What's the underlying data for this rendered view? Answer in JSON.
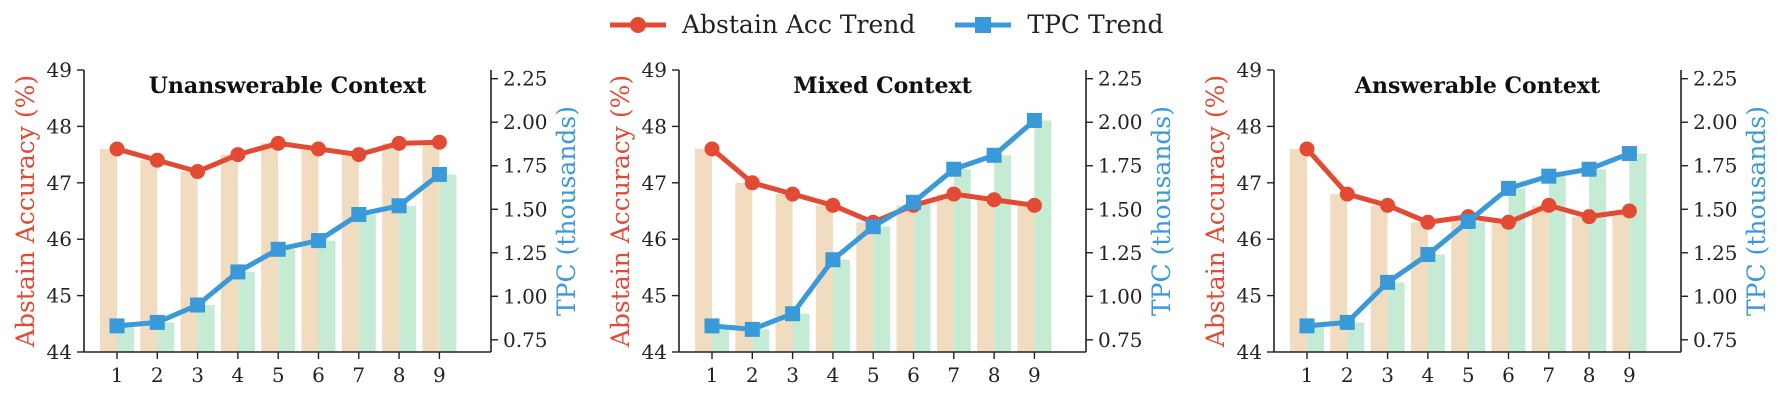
{
  "legend": {
    "acc_label": "Abstain Acc Trend",
    "tpc_label": "TPC Trend"
  },
  "colors": {
    "acc": "#e34a33",
    "tpc": "#3a9ad9",
    "acc_bar": "#f2dcc0",
    "tpc_bar": "#c6ebd4"
  },
  "chart_data": [
    {
      "type": "bar+line",
      "title": "Unanswerable Context",
      "categories": [
        "1",
        "2",
        "3",
        "4",
        "5",
        "6",
        "7",
        "8",
        "9"
      ],
      "ylabel_left": "Abstain Accuracy (%)",
      "ylabel_right": "TPC (thousands)",
      "ylim_left": [
        44,
        49
      ],
      "yticks_left": [
        "44",
        "45",
        "46",
        "47",
        "48",
        "49"
      ],
      "ylim_right": [
        0.68,
        2.3
      ],
      "yticks_right": [
        "0.75",
        "1.00",
        "1.25",
        "1.50",
        "1.75",
        "2.00",
        "2.25"
      ],
      "series": [
        {
          "name": "Abstain Acc Trend",
          "axis": "left",
          "values": [
            47.6,
            47.4,
            47.2,
            47.5,
            47.7,
            47.6,
            47.5,
            47.7,
            47.72
          ]
        },
        {
          "name": "TPC Trend",
          "axis": "right",
          "values": [
            0.83,
            0.85,
            0.95,
            1.14,
            1.27,
            1.32,
            1.47,
            1.52,
            1.7
          ]
        }
      ]
    },
    {
      "type": "bar+line",
      "title": "Mixed Context",
      "categories": [
        "1",
        "2",
        "3",
        "4",
        "5",
        "6",
        "7",
        "8",
        "9"
      ],
      "ylabel_left": "Abstain Accuracy (%)",
      "ylabel_right": "TPC (thousands)",
      "ylim_left": [
        44,
        49
      ],
      "yticks_left": [
        "44",
        "45",
        "46",
        "47",
        "48",
        "49"
      ],
      "ylim_right": [
        0.68,
        2.3
      ],
      "yticks_right": [
        "0.75",
        "1.00",
        "1.25",
        "1.50",
        "1.75",
        "2.00",
        "2.25"
      ],
      "series": [
        {
          "name": "Abstain Acc Trend",
          "axis": "left",
          "values": [
            47.6,
            47.0,
            46.8,
            46.6,
            46.3,
            46.6,
            46.8,
            46.7,
            46.6
          ]
        },
        {
          "name": "TPC Trend",
          "axis": "right",
          "values": [
            0.83,
            0.81,
            0.9,
            1.21,
            1.4,
            1.54,
            1.73,
            1.81,
            2.01
          ]
        }
      ]
    },
    {
      "type": "bar+line",
      "title": "Answerable Context",
      "categories": [
        "1",
        "2",
        "3",
        "4",
        "5",
        "6",
        "7",
        "8",
        "9"
      ],
      "ylabel_left": "Abstain Accuracy (%)",
      "ylabel_right": "TPC (thousands)",
      "ylim_left": [
        44,
        49
      ],
      "yticks_left": [
        "44",
        "45",
        "46",
        "47",
        "48",
        "49"
      ],
      "ylim_right": [
        0.68,
        2.3
      ],
      "yticks_right": [
        "0.75",
        "1.00",
        "1.25",
        "1.50",
        "1.75",
        "2.00",
        "2.25"
      ],
      "series": [
        {
          "name": "Abstain Acc Trend",
          "axis": "left",
          "values": [
            47.6,
            46.8,
            46.6,
            46.3,
            46.4,
            46.3,
            46.6,
            46.4,
            46.5
          ]
        },
        {
          "name": "TPC Trend",
          "axis": "right",
          "values": [
            0.83,
            0.85,
            1.08,
            1.24,
            1.43,
            1.62,
            1.69,
            1.73,
            1.82
          ]
        }
      ]
    }
  ]
}
